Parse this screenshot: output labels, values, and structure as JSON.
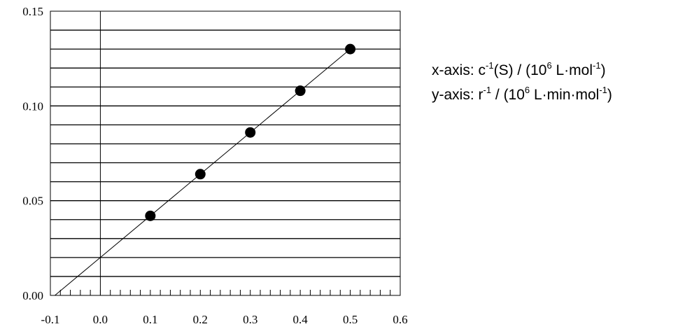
{
  "chart_data": {
    "type": "scatter",
    "points": [
      {
        "x": 0.1,
        "y": 0.042
      },
      {
        "x": 0.2,
        "y": 0.064
      },
      {
        "x": 0.3,
        "y": 0.086
      },
      {
        "x": 0.4,
        "y": 0.108
      },
      {
        "x": 0.5,
        "y": 0.13
      }
    ],
    "fit_line": {
      "x1": -0.091,
      "y1": 0.0,
      "x2": 0.5,
      "y2": 0.13
    },
    "xlim": [
      -0.1,
      0.6
    ],
    "ylim": [
      0.0,
      0.15
    ],
    "x_tick_labels": [
      "-0.1",
      "0.0",
      "0.1",
      "0.2",
      "0.3",
      "0.4",
      "0.5",
      "0.6"
    ],
    "x_tick_values": [
      -0.1,
      0.0,
      0.1,
      0.2,
      0.3,
      0.4,
      0.5,
      0.6
    ],
    "y_tick_labels": [
      "0.00",
      "0.05",
      "0.10",
      "0.15"
    ],
    "y_tick_values": [
      0.0,
      0.05,
      0.1,
      0.15
    ],
    "horizontal_grid_step": 0.01,
    "x_minor_tick_step": 0.02,
    "grid": true
  },
  "legend": {
    "x_axis": {
      "prefix": "x-axis: c",
      "sup1": "-1",
      "middle": "(S) / (10",
      "sup2": "6",
      "unit": " L·mol",
      "sup3": "-1",
      "close": ")"
    },
    "y_axis": {
      "prefix": "y-axis: r",
      "sup1": "-1",
      "middle": " / (10",
      "sup2": "6",
      "unit": " L·min·mol",
      "sup3": "-1",
      "close": ")"
    }
  }
}
